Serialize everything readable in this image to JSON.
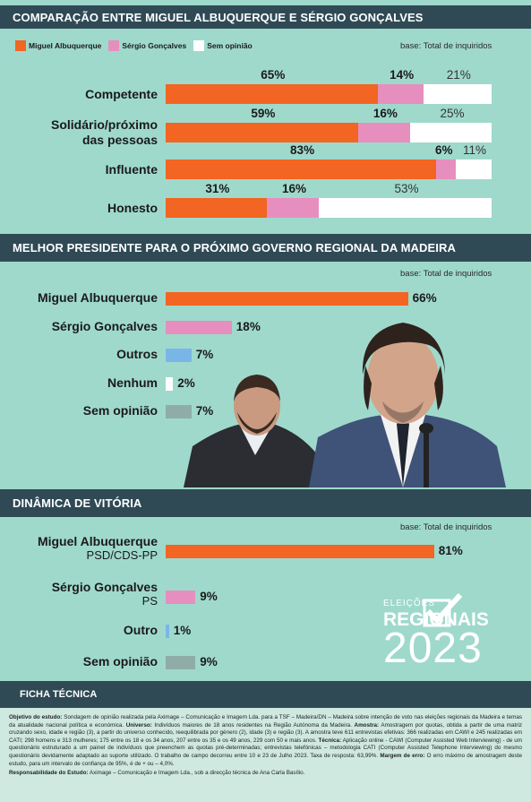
{
  "colors": {
    "albuquerque": "#f26522",
    "goncalves": "#e68fbe",
    "sem_opiniao": "#ffffff",
    "outros": "#7ab5e8",
    "nenhum": "#ffffff",
    "sem_opiniao_grey": "#8fada6"
  },
  "section1": {
    "title": "COMPARAÇÃO ENTRE MIGUEL ALBUQUERQUE E SÉRGIO GONÇALVES",
    "base": "base: Total de inquiridos",
    "legend": [
      "Miguel Albuquerque",
      "Sérgio Gonçalves",
      "Sem opinião"
    ]
  },
  "section2": {
    "title": "MELHOR PRESIDENTE PARA O PRÓXIMO GOVERNO REGIONAL DA MADEIRA",
    "base": "base: Total de inquiridos"
  },
  "section3": {
    "title": "DINÂMICA DE VITÓRIA",
    "base": "base: Total de inquiridos"
  },
  "chart_data": [
    {
      "type": "bar",
      "stacked": true,
      "title": "COMPARAÇÃO ENTRE MIGUEL ALBUQUERQUE E SÉRGIO GONÇALVES",
      "categories": [
        [
          "Competente"
        ],
        [
          "Solidário/próximo",
          "das pessoas"
        ],
        [
          "Influente"
        ],
        [
          "Honesto"
        ]
      ],
      "series": [
        {
          "name": "Miguel Albuquerque",
          "values": [
            65,
            59,
            83,
            31
          ]
        },
        {
          "name": "Sérgio Gonçalves",
          "values": [
            14,
            16,
            6,
            16
          ]
        },
        {
          "name": "Sem opinião",
          "values": [
            21,
            25,
            11,
            53
          ]
        }
      ],
      "unit": "%"
    },
    {
      "type": "bar",
      "title": "MELHOR PRESIDENTE PARA O PRÓXIMO GOVERNO REGIONAL DA MADEIRA",
      "categories": [
        "Miguel Albuquerque",
        "Sérgio Gonçalves",
        "Outros",
        "Nenhum",
        "Sem opinião"
      ],
      "values": [
        66,
        18,
        7,
        2,
        7
      ],
      "unit": "%"
    },
    {
      "type": "bar",
      "title": "DINÂMICA DE VITÓRIA",
      "categories": [
        "Miguel Albuquerque",
        "Sérgio Gonçalves",
        "Outro",
        "Sem opinião"
      ],
      "subtitles": [
        "PSD/CDS-PP",
        "PS",
        "",
        ""
      ],
      "values": [
        81,
        9,
        1,
        9
      ],
      "unit": "%"
    }
  ],
  "logo": {
    "small": "ELEIÇÕES",
    "big": "REGIONAIS",
    "year": "2023"
  },
  "ficha": {
    "title": "FICHA TÉCNICA",
    "obj_label": "Objetivo do estudo:",
    "obj_text": "Sondagem de opinião realizada pela Aximage – Comunicação e Imagem Lda. para a TSF – Madeira/DN – Madeira sobre intenção de voto nas eleições regionais da Madeira e temas da atualidade nacional política e económica.",
    "uni_label": "Universo:",
    "uni_text": "Indivíduos maiores de 18 anos residentes na Região Autónoma da Madeira.",
    "amo_label": "Amostra:",
    "amo_text": "Amostragem por quotas, obtida a partir de uma matriz cruzando sexo, idade e região (3), a partir do universo conhecido, reequilibrada por género (2), idade (3) e região (3). A amostra teve 611 entrevistas efetivas: 366 realizadas em CAWI e 245 realizadas em CATI; 298 homens e 313 mulheres; 175 entre os 18 e os 34 anos, 207 entre os 35 e os 49 anos, 229 com 50 e mais anos.",
    "tec_label": "Técnica:",
    "tec_text": "Aplicação online - CAWI (Computer Assisted Web Interviewing) - de um questionário estruturado a um painel de indivíduos que preenchem as quotas pré-determinadas; entrevistas telefónicas – metodologia CATI (Computer Assisted Telephone Interviewing) do mesmo questionário devidamente adaptado ao suporte utilizado. O trabalho de campo decorreu entre 10 e 23 de Julho 2023. Taxa de resposta: 63,99%.",
    "err_label": "Margem de erro:",
    "err_text": "O erro máximo de amostragem deste estudo, para um intervalo de confiança de 95%, é de + ou – 4,0%.",
    "resp_label": "Responsabilidade do Estudo:",
    "resp_text": "Aximage – Comunicação e Imagem Lda., sob a direcção técnica de Ana Carla Basílio."
  }
}
